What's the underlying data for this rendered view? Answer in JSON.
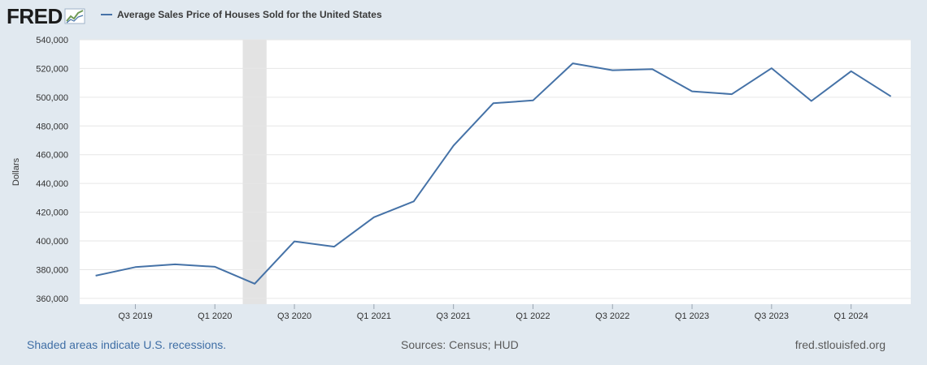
{
  "logo": {
    "text": "FRED",
    "icon": "fred-chart-icon"
  },
  "colors": {
    "background": "#e1e9f0",
    "plot_background": "#ffffff",
    "series": "#4572a7",
    "recession": "#e3e3e3",
    "grid": "#e6e6e6"
  },
  "footer": {
    "recession_note": "Shaded areas indicate U.S. recessions.",
    "sources": "Sources: Census; HUD",
    "site": "fred.stlouisfed.org"
  },
  "chart_data": {
    "type": "line",
    "title": "Average Sales Price of Houses Sold for the United States",
    "xlabel": "",
    "ylabel": "Dollars",
    "ylim": [
      356000,
      540000
    ],
    "grid": true,
    "legend": "top-left",
    "yticks": [
      360000,
      380000,
      400000,
      420000,
      440000,
      460000,
      480000,
      500000,
      520000,
      540000
    ],
    "ytick_labels": [
      "360,000",
      "380,000",
      "400,000",
      "420,000",
      "440,000",
      "460,000",
      "480,000",
      "500,000",
      "520,000",
      "540,000"
    ],
    "xticks": [
      {
        "label": "Q3 2019",
        "index": 1
      },
      {
        "label": "Q1 2020",
        "index": 3
      },
      {
        "label": "Q3 2020",
        "index": 5
      },
      {
        "label": "Q1 2021",
        "index": 7
      },
      {
        "label": "Q3 2021",
        "index": 9
      },
      {
        "label": "Q1 2022",
        "index": 11
      },
      {
        "label": "Q3 2022",
        "index": 13
      },
      {
        "label": "Q1 2023",
        "index": 15
      },
      {
        "label": "Q3 2023",
        "index": 17
      },
      {
        "label": "Q1 2024",
        "index": 19
      }
    ],
    "x_index_range": [
      -0.4,
      20.5
    ],
    "recessions": [
      {
        "start_index": 3.7,
        "end_index": 4.3
      }
    ],
    "series": [
      {
        "name": "Average Sales Price of Houses Sold for the United States",
        "x": [
          "Q2 2019",
          "Q3 2019",
          "Q4 2019",
          "Q1 2020",
          "Q2 2020",
          "Q3 2020",
          "Q4 2020",
          "Q1 2021",
          "Q2 2021",
          "Q3 2021",
          "Q4 2021",
          "Q1 2022",
          "Q2 2022",
          "Q3 2022",
          "Q4 2022",
          "Q1 2023",
          "Q2 2023",
          "Q3 2023",
          "Q4 2023",
          "Q1 2024",
          "Q2 2024"
        ],
        "values": [
          375800,
          381800,
          383700,
          382000,
          370200,
          399700,
          396000,
          416500,
          427500,
          466300,
          495800,
          497800,
          523600,
          518800,
          519500,
          504100,
          502100,
          520200,
          497400,
          518100,
          500600
        ]
      }
    ]
  }
}
